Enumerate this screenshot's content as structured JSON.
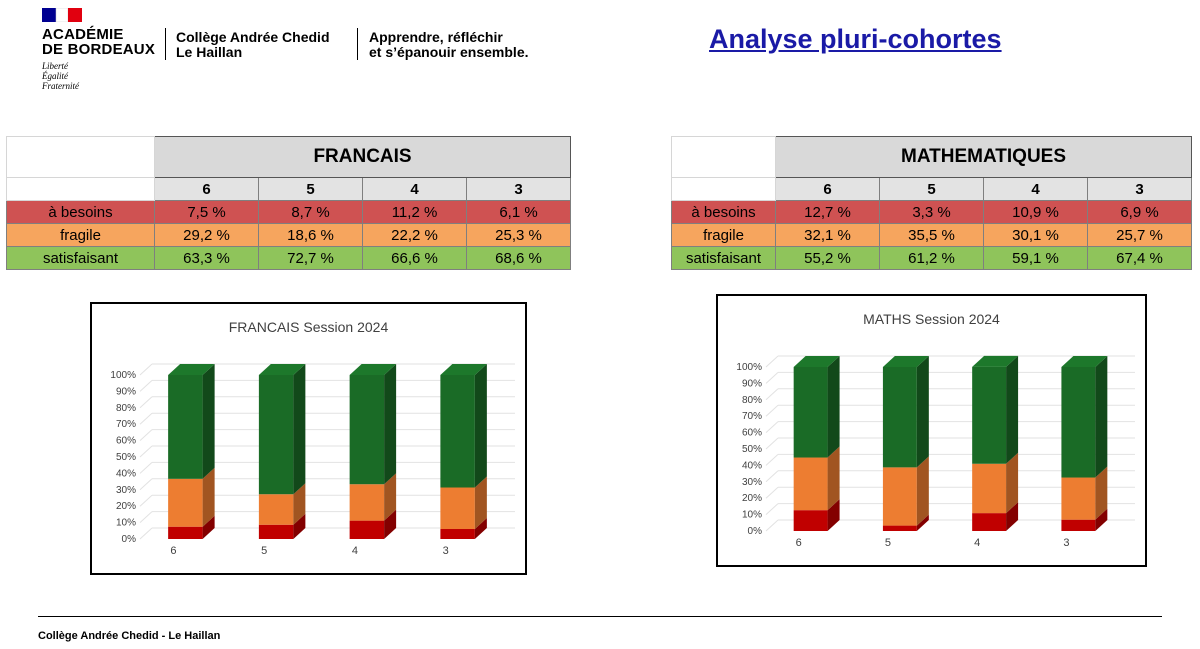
{
  "header": {
    "academie_line1": "ACADÉMIE",
    "academie_line2": "DE BORDEAUX",
    "motto": [
      "Liberté",
      "Égalité",
      "Fraternité"
    ],
    "college_line1": "Collège Andrée Chedid",
    "college_line2": "Le Haillan",
    "tagline_line1": "Apprendre, réfléchir",
    "tagline_line2": "et s’épanouir ensemble.",
    "flag_colors": [
      "#000091",
      "#ffffff",
      "#e1000f"
    ]
  },
  "page_title": "Analyse pluri-cohortes",
  "tables": [
    {
      "subject": "FRANCAIS",
      "levels": [
        "6",
        "5",
        "4",
        "3"
      ],
      "rows": [
        {
          "label": "à besoins",
          "values": [
            "7,5 %",
            "8,7 %",
            "11,2 %",
            "6,1 %"
          ]
        },
        {
          "label": "fragile",
          "values": [
            "29,2 %",
            "18,6 %",
            "22,2 %",
            "25,3 %"
          ]
        },
        {
          "label": "satisfaisant",
          "values": [
            "63,3 %",
            "72,7 %",
            "66,6 %",
            "68,6 %"
          ]
        }
      ]
    },
    {
      "subject": "MATHEMATIQUES",
      "levels": [
        "6",
        "5",
        "4",
        "3"
      ],
      "rows": [
        {
          "label": "à besoins",
          "values": [
            "12,7 %",
            "3,3 %",
            "10,9 %",
            "6,9 %"
          ]
        },
        {
          "label": "fragile",
          "values": [
            "32,1 %",
            "35,5 %",
            "30,1 %",
            "25,7 %"
          ]
        },
        {
          "label": "satisfaisant",
          "values": [
            "55,2 %",
            "61,2 %",
            "59,1 %",
            "67,4 %"
          ]
        }
      ]
    }
  ],
  "chart_data": [
    {
      "type": "bar",
      "stacked": true,
      "style": "3d-column",
      "title": "FRANCAIS Session 2024",
      "categories": [
        "6",
        "5",
        "4",
        "3"
      ],
      "series": [
        {
          "values": [
            7.5,
            8.7,
            11.2,
            6.1
          ],
          "color": "#c00000"
        },
        {
          "values": [
            29.2,
            18.6,
            22.2,
            25.3
          ],
          "color": "#ed7d31"
        },
        {
          "values": [
            63.3,
            72.7,
            66.6,
            68.6
          ],
          "color": "#1a6b26"
        }
      ],
      "ylim": [
        0,
        100
      ],
      "yticks": [
        "0%",
        "10%",
        "20%",
        "30%",
        "40%",
        "50%",
        "60%",
        "70%",
        "80%",
        "90%",
        "100%"
      ],
      "xlabel": "",
      "ylabel": "",
      "grid": true,
      "legend": "none"
    },
    {
      "type": "bar",
      "stacked": true,
      "style": "3d-column",
      "title": "MATHS Session 2024",
      "categories": [
        "6",
        "5",
        "4",
        "3"
      ],
      "series": [
        {
          "values": [
            12.7,
            3.3,
            10.9,
            6.9
          ],
          "color": "#c00000"
        },
        {
          "values": [
            32.1,
            35.5,
            30.1,
            25.7
          ],
          "color": "#ed7d31"
        },
        {
          "values": [
            55.2,
            61.2,
            59.1,
            67.4
          ],
          "color": "#1a6b26"
        }
      ],
      "ylim": [
        0,
        100
      ],
      "yticks": [
        "0%",
        "10%",
        "20%",
        "30%",
        "40%",
        "50%",
        "60%",
        "70%",
        "80%",
        "90%",
        "100%"
      ],
      "xlabel": "",
      "ylabel": "",
      "grid": true,
      "legend": "none"
    }
  ],
  "footer": "Collège Andrée Chedid - Le Haillan"
}
